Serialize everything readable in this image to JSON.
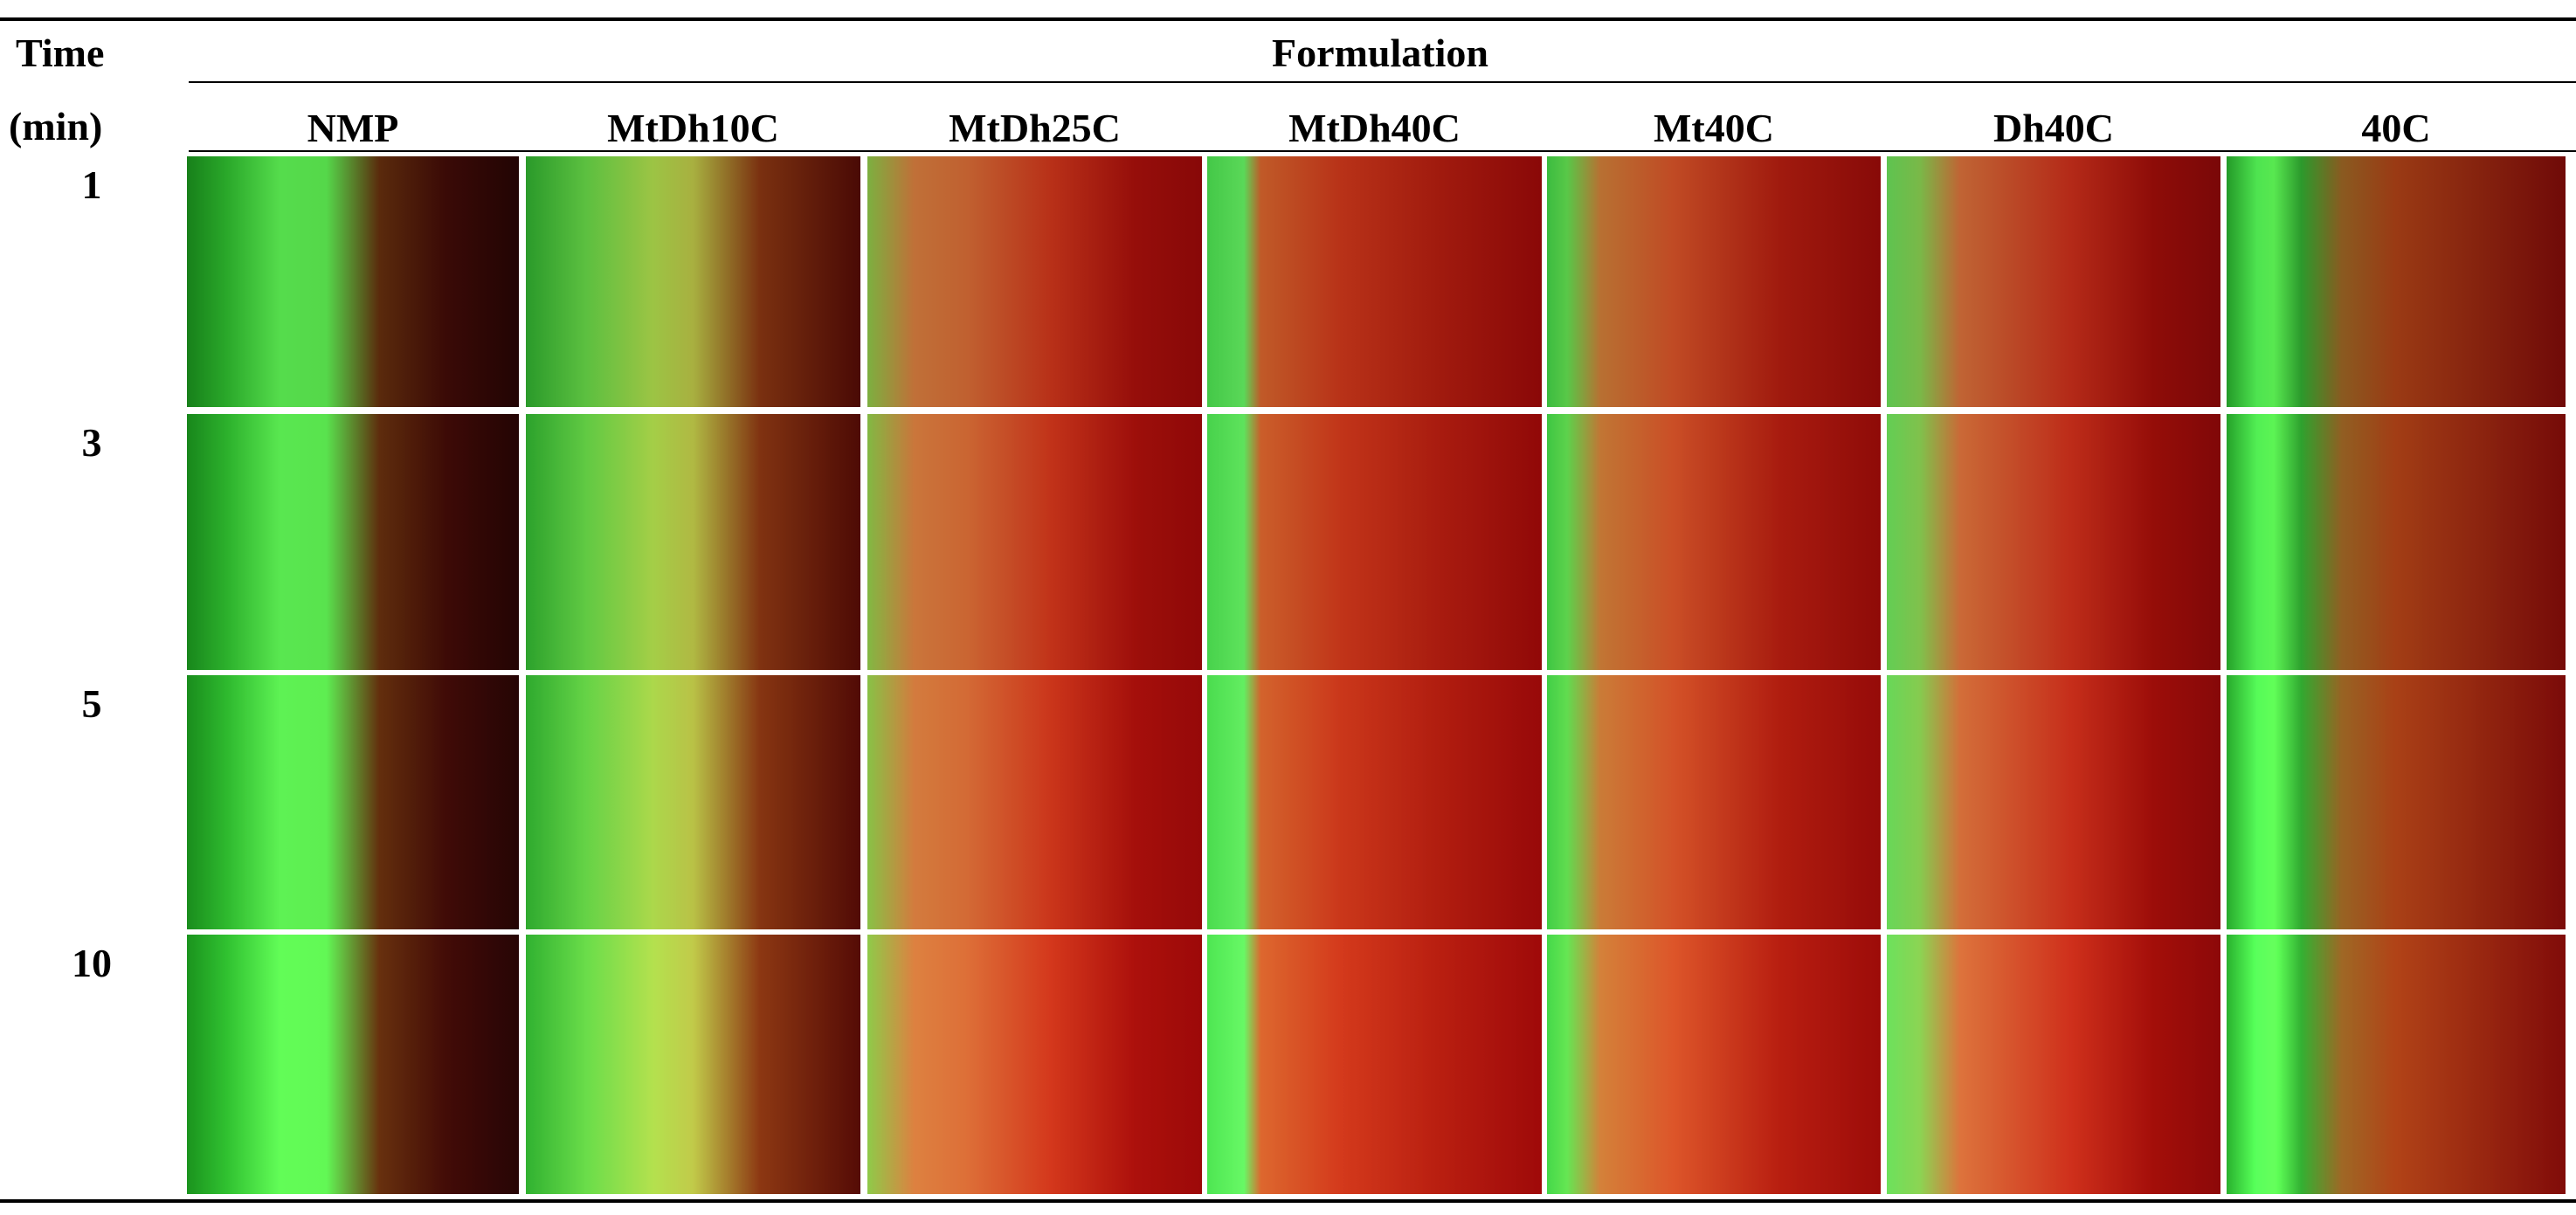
{
  "header": {
    "time_label": "Time",
    "time_unit": "(min)",
    "group_label": "Formulation"
  },
  "columns": [
    "NMP",
    "MtDh10C",
    "MtDh25C",
    "MtDh40C",
    "Mt40C",
    "Dh40C",
    "40C"
  ],
  "rows": [
    1,
    3,
    5,
    10
  ]
}
